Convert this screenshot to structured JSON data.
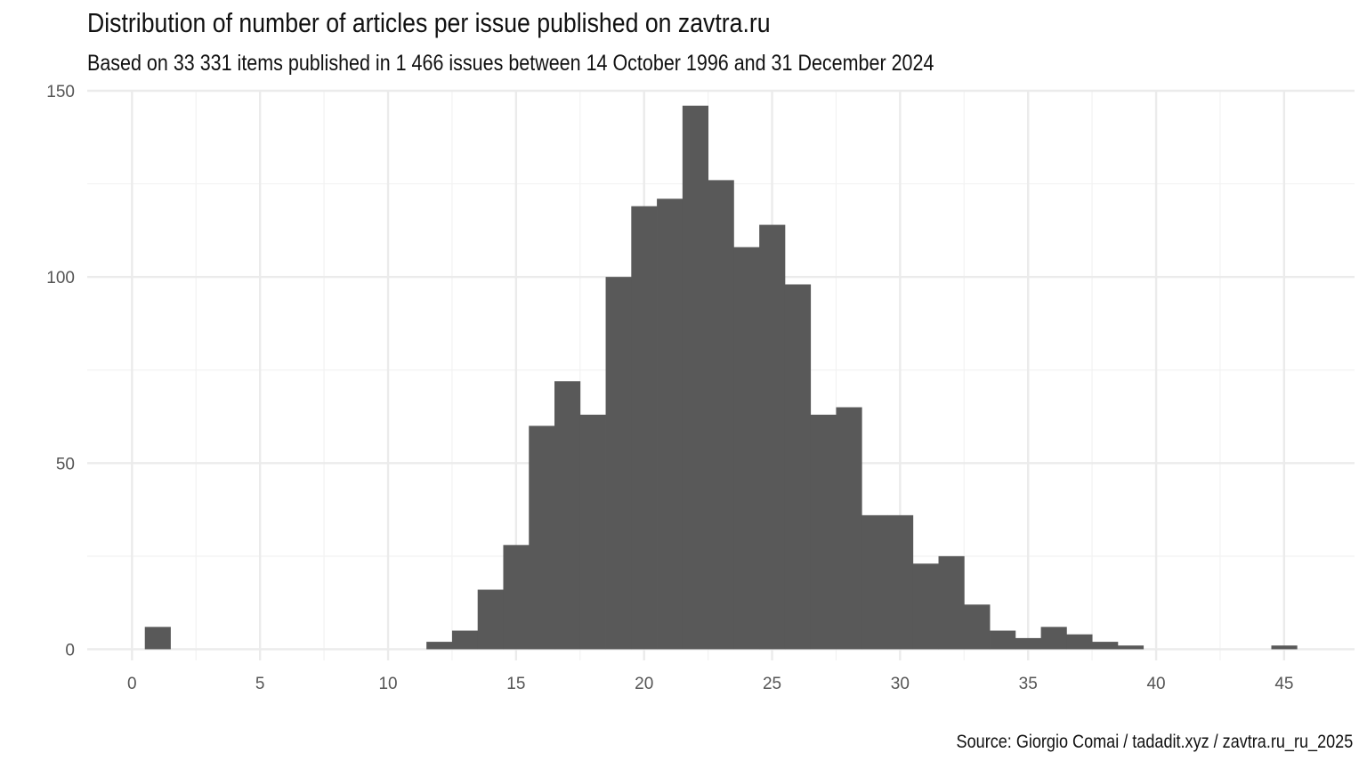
{
  "chart_data": {
    "type": "bar",
    "title": "Distribution of number of articles per issue published on zavtra.ru",
    "subtitle": "Based on 33 331 items published in 1 466 issues between 14 October 1996 and 31 December 2024",
    "caption": "Source: Giorgio Comai / tadadit.xyz / zavtra.ru_ru_2025",
    "xlabel": "",
    "ylabel": "",
    "xlim": [
      -1.75,
      47.75
    ],
    "ylim": [
      -3,
      150
    ],
    "x_ticks": [
      0,
      5,
      10,
      15,
      20,
      25,
      30,
      35,
      40,
      45
    ],
    "x_tick_labels": [
      "0",
      "5",
      "10",
      "15",
      "20",
      "25",
      "30",
      "35",
      "40",
      "45"
    ],
    "y_ticks": [
      0,
      50,
      100,
      150
    ],
    "y_tick_labels": [
      "0",
      "50",
      "100",
      "150"
    ],
    "grid": true,
    "bar_color": "#595959",
    "bins": [
      {
        "x": 1,
        "count": 6
      },
      {
        "x": 12,
        "count": 2
      },
      {
        "x": 13,
        "count": 5
      },
      {
        "x": 14,
        "count": 16
      },
      {
        "x": 15,
        "count": 28
      },
      {
        "x": 16,
        "count": 60
      },
      {
        "x": 17,
        "count": 72
      },
      {
        "x": 18,
        "count": 63
      },
      {
        "x": 19,
        "count": 100
      },
      {
        "x": 20,
        "count": 119
      },
      {
        "x": 21,
        "count": 121
      },
      {
        "x": 22,
        "count": 146
      },
      {
        "x": 23,
        "count": 126
      },
      {
        "x": 24,
        "count": 108
      },
      {
        "x": 25,
        "count": 114
      },
      {
        "x": 26,
        "count": 98
      },
      {
        "x": 27,
        "count": 63
      },
      {
        "x": 28,
        "count": 65
      },
      {
        "x": 29,
        "count": 36
      },
      {
        "x": 30,
        "count": 36
      },
      {
        "x": 31,
        "count": 23
      },
      {
        "x": 32,
        "count": 25
      },
      {
        "x": 33,
        "count": 12
      },
      {
        "x": 34,
        "count": 5
      },
      {
        "x": 35,
        "count": 3
      },
      {
        "x": 36,
        "count": 6
      },
      {
        "x": 37,
        "count": 4
      },
      {
        "x": 38,
        "count": 2
      },
      {
        "x": 39,
        "count": 1
      },
      {
        "x": 45,
        "count": 1
      }
    ]
  }
}
